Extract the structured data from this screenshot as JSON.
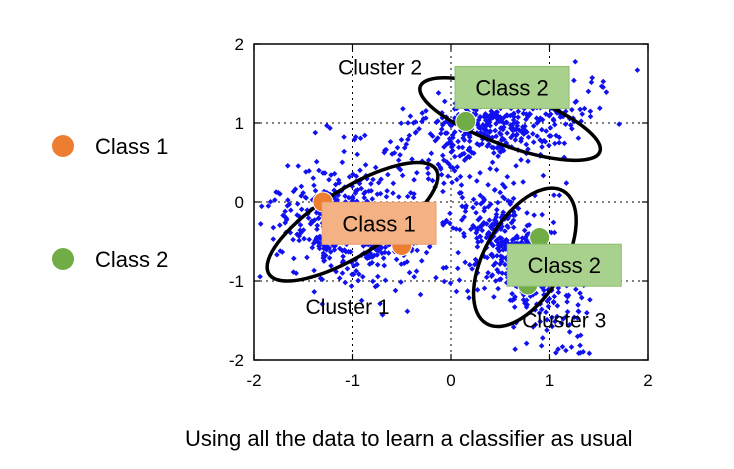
{
  "chart_data": {
    "type": "scatter",
    "title": "",
    "xlabel": "",
    "ylabel": "",
    "xlim": [
      -2,
      2
    ],
    "ylim": [
      -2,
      2
    ],
    "xticks": [
      "-2",
      "-1",
      "0",
      "1",
      "2"
    ],
    "yticks": [
      "2",
      "1",
      "0",
      "-1",
      "-2"
    ],
    "grid": true,
    "point_color": "#1010f0",
    "clusters": [
      {
        "label": "Cluster 1",
        "center": [
          -1.05,
          -0.3
        ],
        "spread": [
          0.4,
          0.3
        ],
        "angle_deg": -32,
        "count": 420
      },
      {
        "label": "Cluster 2",
        "center": [
          0.45,
          1.0
        ],
        "spread": [
          0.5,
          0.24
        ],
        "angle_deg": 18,
        "count": 420
      },
      {
        "label": "Cluster 3",
        "center": [
          0.7,
          -0.75
        ],
        "spread": [
          0.2,
          0.55
        ],
        "angle_deg": 28,
        "count": 420
      }
    ],
    "ellipses": [
      {
        "name": "cluster-1-ellipse",
        "center": [
          -1.0,
          -0.25
        ],
        "rx": 1.0,
        "ry": 0.42,
        "angle_deg": -32
      },
      {
        "name": "cluster-2-ellipse",
        "center": [
          0.6,
          1.05
        ],
        "rx": 0.97,
        "ry": 0.34,
        "angle_deg": 20
      },
      {
        "name": "cluster-3-ellipse",
        "center": [
          0.75,
          -0.7
        ],
        "rx": 0.4,
        "ry": 0.97,
        "angle_deg": 30
      }
    ],
    "labeled_points": [
      {
        "class": "Class 1",
        "x": -1.3,
        "y": 0.0
      },
      {
        "class": "Class 1",
        "x": -0.5,
        "y": -0.55
      },
      {
        "class": "Class 2",
        "x": 0.15,
        "y": 1.02
      },
      {
        "class": "Class 2",
        "x": 0.9,
        "y": -0.45
      },
      {
        "class": "Class 2",
        "x": 0.78,
        "y": -1.05
      }
    ],
    "class_boxes": [
      {
        "label": "Class 2",
        "x": 0.62,
        "y": 1.45
      },
      {
        "label": "Class 1",
        "x": -0.73,
        "y": -0.27
      },
      {
        "label": "Class 2",
        "x": 1.15,
        "y": -0.8
      }
    ],
    "cluster_labels": [
      {
        "label": "Cluster 2",
        "x": -0.72,
        "y": 1.7
      },
      {
        "label": "Cluster 1",
        "x": -1.05,
        "y": -1.33
      },
      {
        "label": "Cluster 3",
        "x": 1.15,
        "y": -1.5
      }
    ],
    "legend": {
      "placement": "left",
      "items": [
        {
          "label": "Class 1",
          "color": "#ed7d31"
        },
        {
          "label": "Class 2",
          "color": "#70ad47"
        }
      ]
    }
  },
  "colors": {
    "class1_point": "#ed7d31",
    "class2_point": "#70ad47",
    "class1_box_fill": "#f4b183",
    "class2_box_fill": "#a9d18e"
  },
  "caption": "Using all the data to learn a classifier as usual"
}
